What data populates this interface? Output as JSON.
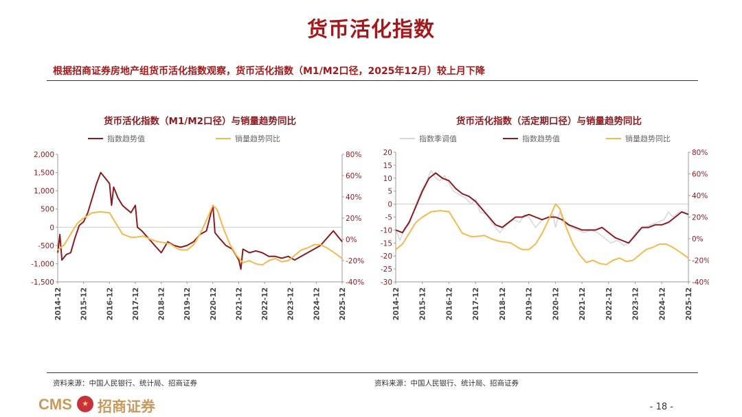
{
  "page": {
    "title": "货币活化指数",
    "subtitle": "根据招商证券房地产组货币活化指数观察，货币活化指数（M1/M2口径，2025年12月）较上月下降",
    "source_left": "资料来源：中国人民银行、统计局、招商证券",
    "source_right": "资料来源：中国人民银行、统计局、招商证券",
    "logo_cms": "CMS",
    "logo_text": "招商证券",
    "page_number": "- 18 -"
  },
  "colors": {
    "title_red": "#a3191b",
    "trend_line": "#8b1a1f",
    "yoy_line": "#f7b84b",
    "seasonal_line": "#d6d6d6",
    "axis_text": "#8b1a1f"
  },
  "chart_data": [
    {
      "type": "line",
      "title": "货币活化指数（M1/M2口径）与销量趋势同比",
      "x_ticks": [
        "2014-12",
        "2015-12",
        "2016-12",
        "2017-12",
        "2018-12",
        "2019-12",
        "2020-12",
        "2021-12",
        "2022-12",
        "2023-12",
        "2024-12",
        "2025-12"
      ],
      "y_left_ticks": [
        "2,000",
        "1,500",
        "1,000",
        "500",
        "0",
        "-500",
        "-1,000",
        "-1,500"
      ],
      "y_left_range": [
        -1500,
        2000
      ],
      "y_right_ticks": [
        "80%",
        "60%",
        "40%",
        "20%",
        "0%",
        "-20%",
        "-40%"
      ],
      "y_right_range": [
        -40,
        80
      ],
      "x_range": [
        2014.917,
        2025.917
      ],
      "legend": "top-left",
      "series": [
        {
          "name": "指数趋势值",
          "axis": "left",
          "color": "#8b1a1f",
          "points": [
            [
              2014.92,
              -700
            ],
            [
              2015.0,
              -200
            ],
            [
              2015.08,
              -900
            ],
            [
              2015.25,
              -750
            ],
            [
              2015.42,
              -700
            ],
            [
              2015.58,
              -300
            ],
            [
              2015.75,
              50
            ],
            [
              2015.92,
              150
            ],
            [
              2016.08,
              400
            ],
            [
              2016.25,
              800
            ],
            [
              2016.42,
              1200
            ],
            [
              2016.58,
              1500
            ],
            [
              2016.75,
              1350
            ],
            [
              2016.92,
              1200
            ],
            [
              2017.0,
              600
            ],
            [
              2017.08,
              1100
            ],
            [
              2017.25,
              800
            ],
            [
              2017.42,
              600
            ],
            [
              2017.58,
              500
            ],
            [
              2017.75,
              400
            ],
            [
              2017.92,
              600
            ],
            [
              2018.0,
              0
            ],
            [
              2018.17,
              -100
            ],
            [
              2018.42,
              -300
            ],
            [
              2018.67,
              -500
            ],
            [
              2018.92,
              -700
            ],
            [
              2019.17,
              -400
            ],
            [
              2019.42,
              -500
            ],
            [
              2019.67,
              -550
            ],
            [
              2019.92,
              -500
            ],
            [
              2020.17,
              -400
            ],
            [
              2020.42,
              -200
            ],
            [
              2020.67,
              -100
            ],
            [
              2020.92,
              600
            ],
            [
              2021.0,
              -150
            ],
            [
              2021.17,
              -300
            ],
            [
              2021.42,
              -500
            ],
            [
              2021.67,
              -600
            ],
            [
              2021.92,
              -900
            ],
            [
              2022.0,
              -1150
            ],
            [
              2022.08,
              -600
            ],
            [
              2022.33,
              -700
            ],
            [
              2022.58,
              -650
            ],
            [
              2022.83,
              -700
            ],
            [
              2023.08,
              -800
            ],
            [
              2023.33,
              -800
            ],
            [
              2023.58,
              -850
            ],
            [
              2023.83,
              -800
            ],
            [
              2024.08,
              -900
            ],
            [
              2024.33,
              -800
            ],
            [
              2024.58,
              -700
            ],
            [
              2024.83,
              -600
            ],
            [
              2025.08,
              -500
            ],
            [
              2025.33,
              -300
            ],
            [
              2025.58,
              -100
            ],
            [
              2025.75,
              -250
            ],
            [
              2025.92,
              -400
            ]
          ]
        },
        {
          "name": "销量趋势同比",
          "axis": "right",
          "color": "#f7b84b",
          "points": [
            [
              2014.92,
              -10
            ],
            [
              2015.17,
              -5
            ],
            [
              2015.42,
              5
            ],
            [
              2015.67,
              15
            ],
            [
              2015.92,
              20
            ],
            [
              2016.25,
              25
            ],
            [
              2016.58,
              26
            ],
            [
              2016.92,
              25
            ],
            [
              2017.17,
              15
            ],
            [
              2017.42,
              5
            ],
            [
              2017.75,
              2
            ],
            [
              2017.92,
              2
            ],
            [
              2018.25,
              3
            ],
            [
              2018.5,
              0
            ],
            [
              2018.75,
              -2
            ],
            [
              2019.0,
              -3
            ],
            [
              2019.25,
              -4
            ],
            [
              2019.5,
              -8
            ],
            [
              2019.67,
              -10
            ],
            [
              2019.92,
              -10
            ],
            [
              2020.17,
              -5
            ],
            [
              2020.42,
              5
            ],
            [
              2020.67,
              18
            ],
            [
              2020.92,
              32
            ],
            [
              2021.08,
              28
            ],
            [
              2021.33,
              10
            ],
            [
              2021.58,
              -5
            ],
            [
              2021.83,
              -15
            ],
            [
              2022.08,
              -22
            ],
            [
              2022.33,
              -20
            ],
            [
              2022.58,
              -23
            ],
            [
              2022.83,
              -24
            ],
            [
              2023.08,
              -20
            ],
            [
              2023.33,
              -18
            ],
            [
              2023.58,
              -21
            ],
            [
              2023.83,
              -20
            ],
            [
              2024.08,
              -15
            ],
            [
              2024.33,
              -10
            ],
            [
              2024.58,
              -8
            ],
            [
              2024.83,
              -5
            ],
            [
              2025.08,
              -5
            ],
            [
              2025.33,
              -8
            ],
            [
              2025.58,
              -12
            ],
            [
              2025.92,
              -18
            ]
          ]
        }
      ]
    },
    {
      "type": "line",
      "title": "货币活化指数（活定期口径）与销量趋势同比",
      "x_ticks": [
        "2014-12",
        "2015-12",
        "2016-12",
        "2017-12",
        "2018-12",
        "2019-12",
        "2020-12",
        "2021-12",
        "2022-12",
        "2023-12",
        "2024-12",
        "2025-12"
      ],
      "y_left_ticks": [
        "20",
        "15",
        "10",
        "5",
        "0",
        "-5",
        "-10",
        "-15",
        "-20",
        "-25",
        "-30"
      ],
      "y_left_range": [
        -30,
        20
      ],
      "y_right_ticks": [
        "80%",
        "60%",
        "40%",
        "20%",
        "0%",
        "-20%",
        "-40%"
      ],
      "y_right_range": [
        -40,
        80
      ],
      "x_range": [
        2014.917,
        2025.917
      ],
      "legend": "top",
      "series": [
        {
          "name": "指数季调值",
          "axis": "left",
          "color": "#d6d6d6",
          "points": [
            [
              2014.92,
              -10
            ],
            [
              2015.08,
              -14
            ],
            [
              2015.25,
              -9
            ],
            [
              2015.42,
              -8
            ],
            [
              2015.58,
              -3
            ],
            [
              2015.75,
              2
            ],
            [
              2015.92,
              6
            ],
            [
              2016.08,
              9
            ],
            [
              2016.25,
              13
            ],
            [
              2016.42,
              10
            ],
            [
              2016.58,
              9
            ],
            [
              2016.75,
              11
            ],
            [
              2016.92,
              8
            ],
            [
              2017.08,
              5
            ],
            [
              2017.25,
              4
            ],
            [
              2017.42,
              3
            ],
            [
              2017.58,
              2
            ],
            [
              2017.75,
              0
            ],
            [
              2017.92,
              2
            ],
            [
              2018.08,
              -3
            ],
            [
              2018.33,
              -4
            ],
            [
              2018.58,
              -8
            ],
            [
              2018.83,
              -11
            ],
            [
              2019.08,
              -8
            ],
            [
              2019.33,
              -6
            ],
            [
              2019.58,
              -7
            ],
            [
              2019.75,
              -4
            ],
            [
              2019.92,
              -5
            ],
            [
              2020.17,
              -9
            ],
            [
              2020.42,
              -6
            ],
            [
              2020.67,
              -5
            ],
            [
              2020.83,
              -4
            ],
            [
              2020.92,
              -9
            ],
            [
              2021.08,
              -3
            ],
            [
              2021.25,
              -7
            ],
            [
              2021.5,
              -9
            ],
            [
              2021.75,
              -10
            ],
            [
              2022.0,
              -11
            ],
            [
              2022.25,
              -10
            ],
            [
              2022.5,
              -11
            ],
            [
              2022.75,
              -13
            ],
            [
              2023.0,
              -15
            ],
            [
              2023.25,
              -14
            ],
            [
              2023.5,
              -16
            ],
            [
              2023.75,
              -14
            ],
            [
              2024.0,
              -10
            ],
            [
              2024.25,
              -9
            ],
            [
              2024.5,
              -8
            ],
            [
              2024.75,
              -7
            ],
            [
              2025.0,
              -6
            ],
            [
              2025.17,
              -3
            ],
            [
              2025.33,
              -5
            ],
            [
              2025.58,
              -3
            ],
            [
              2025.92,
              -4
            ]
          ]
        },
        {
          "name": "指数趋势值",
          "axis": "left",
          "color": "#8b1a1f",
          "points": [
            [
              2014.92,
              -10
            ],
            [
              2015.17,
              -11
            ],
            [
              2015.42,
              -7
            ],
            [
              2015.67,
              -1
            ],
            [
              2015.92,
              5
            ],
            [
              2016.17,
              10
            ],
            [
              2016.42,
              12
            ],
            [
              2016.67,
              10
            ],
            [
              2016.92,
              9
            ],
            [
              2017.17,
              6
            ],
            [
              2017.42,
              4
            ],
            [
              2017.67,
              3
            ],
            [
              2017.92,
              1
            ],
            [
              2018.17,
              -2
            ],
            [
              2018.42,
              -5
            ],
            [
              2018.67,
              -8
            ],
            [
              2018.92,
              -9
            ],
            [
              2019.17,
              -7
            ],
            [
              2019.42,
              -5
            ],
            [
              2019.67,
              -5
            ],
            [
              2019.92,
              -4
            ],
            [
              2020.17,
              -5
            ],
            [
              2020.42,
              -6
            ],
            [
              2020.67,
              -5
            ],
            [
              2020.92,
              -5
            ],
            [
              2021.17,
              -6
            ],
            [
              2021.42,
              -8
            ],
            [
              2021.67,
              -9
            ],
            [
              2021.92,
              -10
            ],
            [
              2022.17,
              -10
            ],
            [
              2022.42,
              -10
            ],
            [
              2022.67,
              -9
            ],
            [
              2022.92,
              -11
            ],
            [
              2023.17,
              -13
            ],
            [
              2023.42,
              -14
            ],
            [
              2023.67,
              -15
            ],
            [
              2023.92,
              -12
            ],
            [
              2024.17,
              -9
            ],
            [
              2024.42,
              -9
            ],
            [
              2024.67,
              -8
            ],
            [
              2024.92,
              -8
            ],
            [
              2025.17,
              -7
            ],
            [
              2025.42,
              -5
            ],
            [
              2025.67,
              -3
            ],
            [
              2025.92,
              -4
            ]
          ]
        },
        {
          "name": "销量趋势同比",
          "axis": "right",
          "color": "#f7b84b",
          "points": [
            [
              2014.92,
              -10
            ],
            [
              2015.17,
              -5
            ],
            [
              2015.42,
              5
            ],
            [
              2015.67,
              15
            ],
            [
              2015.92,
              20
            ],
            [
              2016.25,
              25
            ],
            [
              2016.58,
              26
            ],
            [
              2016.92,
              25
            ],
            [
              2017.17,
              15
            ],
            [
              2017.42,
              5
            ],
            [
              2017.75,
              2
            ],
            [
              2017.92,
              2
            ],
            [
              2018.25,
              3
            ],
            [
              2018.5,
              0
            ],
            [
              2018.75,
              -2
            ],
            [
              2019.0,
              -3
            ],
            [
              2019.25,
              -4
            ],
            [
              2019.5,
              -8
            ],
            [
              2019.67,
              -10
            ],
            [
              2019.92,
              -10
            ],
            [
              2020.17,
              -5
            ],
            [
              2020.42,
              5
            ],
            [
              2020.67,
              18
            ],
            [
              2020.92,
              32
            ],
            [
              2021.08,
              28
            ],
            [
              2021.33,
              10
            ],
            [
              2021.58,
              -5
            ],
            [
              2021.83,
              -15
            ],
            [
              2022.08,
              -22
            ],
            [
              2022.33,
              -20
            ],
            [
              2022.58,
              -23
            ],
            [
              2022.83,
              -24
            ],
            [
              2023.08,
              -20
            ],
            [
              2023.33,
              -18
            ],
            [
              2023.58,
              -21
            ],
            [
              2023.83,
              -20
            ],
            [
              2024.08,
              -15
            ],
            [
              2024.33,
              -10
            ],
            [
              2024.58,
              -8
            ],
            [
              2024.83,
              -5
            ],
            [
              2025.08,
              -5
            ],
            [
              2025.33,
              -8
            ],
            [
              2025.58,
              -12
            ],
            [
              2025.92,
              -18
            ]
          ]
        }
      ]
    }
  ]
}
